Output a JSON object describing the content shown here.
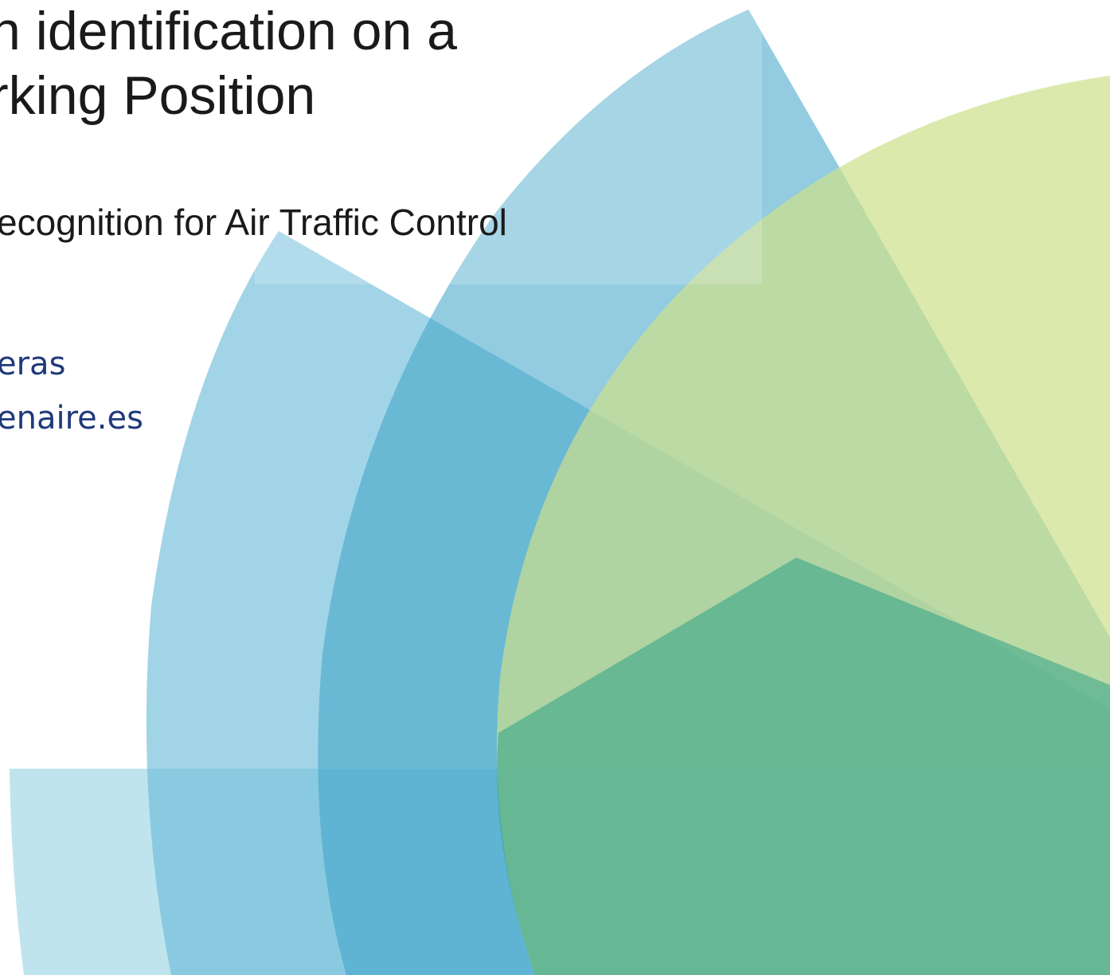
{
  "title_lines": [
    "n identification on a",
    "rking Position"
  ],
  "subtitle": "ecognition for Air Traffic Control",
  "contact": [
    "eras",
    "enaire.es"
  ]
}
